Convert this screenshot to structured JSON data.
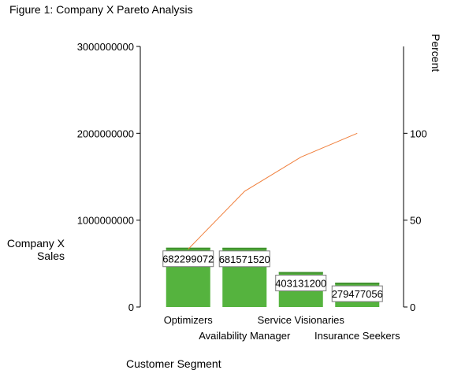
{
  "chart_data": {
    "type": "bar",
    "title": "Figure 1: Company X Pareto Analysis",
    "xlabel": "Customer Segment",
    "ylabel_line1": "Company X",
    "ylabel_line2": "Sales",
    "y2label": "Percent",
    "categories": [
      "Optimizers",
      "Availability Manager",
      "Service Visionaries",
      "Insurance Seekers"
    ],
    "series": [
      {
        "values": [
          682299072,
          681571520,
          403131200,
          279477056
        ]
      }
    ],
    "cumulative_percent": [
      33.3,
      66.6,
      86.3,
      100
    ],
    "ylim": [
      0,
      3000000000
    ],
    "y_ticks": [
      "3000000000",
      "2000000000",
      "1000000000",
      "0"
    ],
    "y_tick_values": [
      3000000000,
      2000000000,
      1000000000,
      0
    ],
    "y2lim": [
      0,
      150
    ],
    "y2_ticks": [
      "100",
      "50",
      "0"
    ],
    "y2_tick_values": [
      100,
      50,
      0
    ],
    "data_labels": [
      "682299072",
      "681571520",
      "403131200",
      "279477056"
    ],
    "bar_color": "#55b33e",
    "bar_top_color": "#3f8f2d",
    "line_color": "#f07f3c",
    "grid": false,
    "legend": "none"
  }
}
